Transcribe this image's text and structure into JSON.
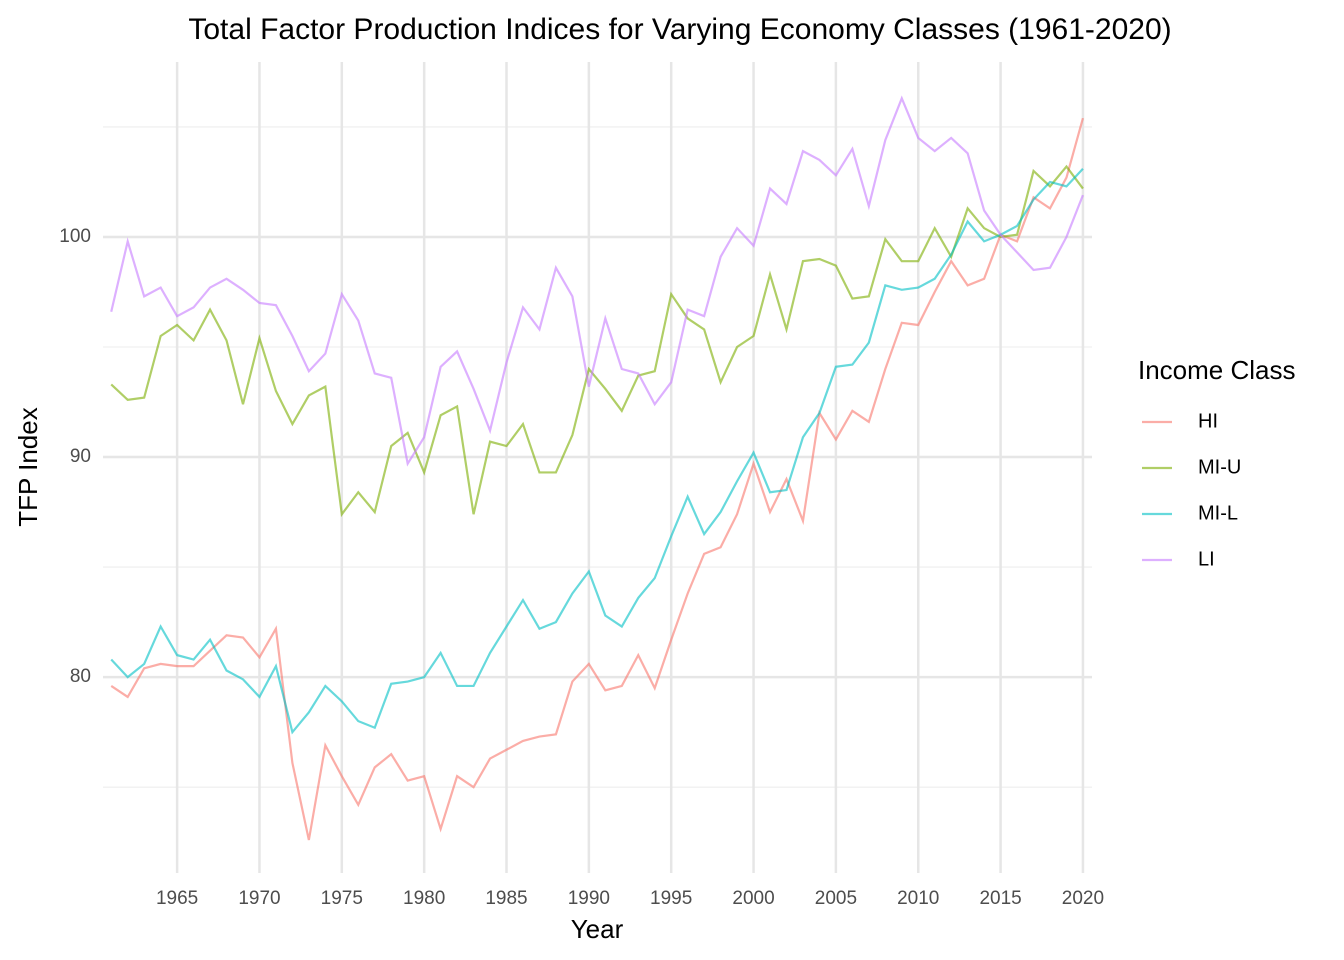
{
  "chart_data": {
    "type": "line",
    "title": "Total Factor Production Indices for Varying Economy Classes (1961-2020)",
    "x_label": "Year",
    "y_label": "TFP Index",
    "legend_title": "Income Class",
    "legend": "right",
    "x": [
      1961,
      1962,
      1963,
      1964,
      1965,
      1966,
      1967,
      1968,
      1969,
      1970,
      1971,
      1972,
      1973,
      1974,
      1975,
      1976,
      1977,
      1978,
      1979,
      1980,
      1981,
      1982,
      1983,
      1984,
      1985,
      1986,
      1987,
      1988,
      1989,
      1990,
      1991,
      1992,
      1993,
      1994,
      1995,
      1996,
      1997,
      1998,
      1999,
      2000,
      2001,
      2002,
      2003,
      2004,
      2005,
      2006,
      2007,
      2008,
      2009,
      2010,
      2011,
      2012,
      2013,
      2014,
      2015,
      2016,
      2017,
      2018,
      2019,
      2020
    ],
    "series": [
      {
        "name": "HI",
        "color": "#F8766D",
        "values": [
          79.6,
          79.1,
          80.4,
          80.6,
          80.5,
          80.5,
          81.2,
          81.9,
          81.8,
          80.9,
          82.2,
          76.1,
          72.6,
          76.9,
          75.5,
          74.2,
          75.9,
          76.5,
          75.3,
          75.5,
          73.1,
          75.5,
          75.0,
          76.3,
          76.7,
          77.1,
          77.3,
          77.4,
          79.8,
          80.6,
          79.4,
          79.6,
          81.0,
          79.5,
          81.7,
          83.8,
          85.6,
          85.9,
          87.4,
          89.7,
          87.5,
          89.0,
          87.1,
          92.0,
          90.8,
          92.1,
          91.6,
          94.0,
          96.1,
          96.0,
          97.5,
          98.9,
          97.8,
          98.1,
          100.1,
          99.8,
          101.8,
          101.3,
          102.7,
          105.4
        ]
      },
      {
        "name": "MI-U",
        "color": "#7CAE00",
        "values": [
          93.3,
          92.6,
          92.7,
          95.5,
          96.0,
          95.3,
          96.7,
          95.3,
          92.4,
          95.4,
          93.0,
          91.5,
          92.8,
          93.2,
          87.4,
          88.4,
          87.5,
          90.5,
          91.1,
          89.3,
          91.9,
          92.3,
          87.4,
          90.7,
          90.5,
          91.5,
          89.3,
          89.3,
          91.0,
          94.0,
          93.1,
          92.1,
          93.7,
          93.9,
          97.4,
          96.3,
          95.8,
          93.4,
          95.0,
          95.5,
          98.3,
          95.8,
          98.9,
          99.0,
          98.7,
          97.2,
          97.3,
          99.9,
          98.9,
          98.9,
          100.4,
          99.1,
          101.3,
          100.4,
          100.0,
          100.1,
          103.0,
          102.3,
          103.2,
          102.2
        ]
      },
      {
        "name": "MI-L",
        "color": "#00BFC4",
        "values": [
          80.8,
          80.0,
          80.6,
          82.3,
          81.0,
          80.8,
          81.7,
          80.3,
          79.9,
          79.1,
          80.5,
          77.5,
          78.4,
          79.6,
          78.9,
          78.0,
          77.7,
          79.7,
          79.8,
          80.0,
          81.1,
          79.6,
          79.6,
          81.1,
          82.3,
          83.5,
          82.2,
          82.5,
          83.8,
          84.8,
          82.8,
          82.3,
          83.6,
          84.5,
          86.4,
          88.2,
          86.5,
          87.5,
          88.9,
          90.2,
          88.4,
          88.5,
          90.9,
          92.0,
          94.1,
          94.2,
          95.2,
          97.8,
          97.6,
          97.7,
          98.1,
          99.2,
          100.7,
          99.8,
          100.1,
          100.5,
          101.7,
          102.5,
          102.3,
          103.1
        ]
      },
      {
        "name": "LI",
        "color": "#C77CFF",
        "values": [
          96.6,
          99.8,
          97.3,
          97.7,
          96.4,
          96.8,
          97.7,
          98.1,
          97.6,
          97.0,
          96.9,
          95.5,
          93.9,
          94.7,
          97.4,
          96.2,
          93.8,
          93.6,
          89.7,
          90.9,
          94.1,
          94.8,
          93.1,
          91.2,
          94.3,
          96.8,
          95.8,
          98.6,
          97.3,
          93.2,
          96.3,
          94.0,
          93.8,
          92.4,
          93.4,
          96.7,
          96.4,
          99.1,
          100.4,
          99.6,
          102.2,
          101.5,
          103.9,
          103.5,
          102.8,
          104.0,
          101.4,
          104.4,
          106.3,
          104.5,
          103.9,
          104.5,
          103.8,
          101.2,
          100.1,
          99.3,
          98.5,
          98.6,
          100.0,
          101.9
        ]
      }
    ],
    "xlim": [
      1960.5,
      2020.55
    ],
    "xticks": [
      1965,
      1970,
      1975,
      1980,
      1985,
      1990,
      1995,
      2000,
      2005,
      2010,
      2015,
      2020
    ],
    "ylim": [
      71.1,
      107.95
    ],
    "yticks": [
      80,
      90,
      100
    ],
    "y_minor_grid": [
      75,
      85,
      95,
      105
    ],
    "grid": true,
    "line_opacity": 0.6
  }
}
